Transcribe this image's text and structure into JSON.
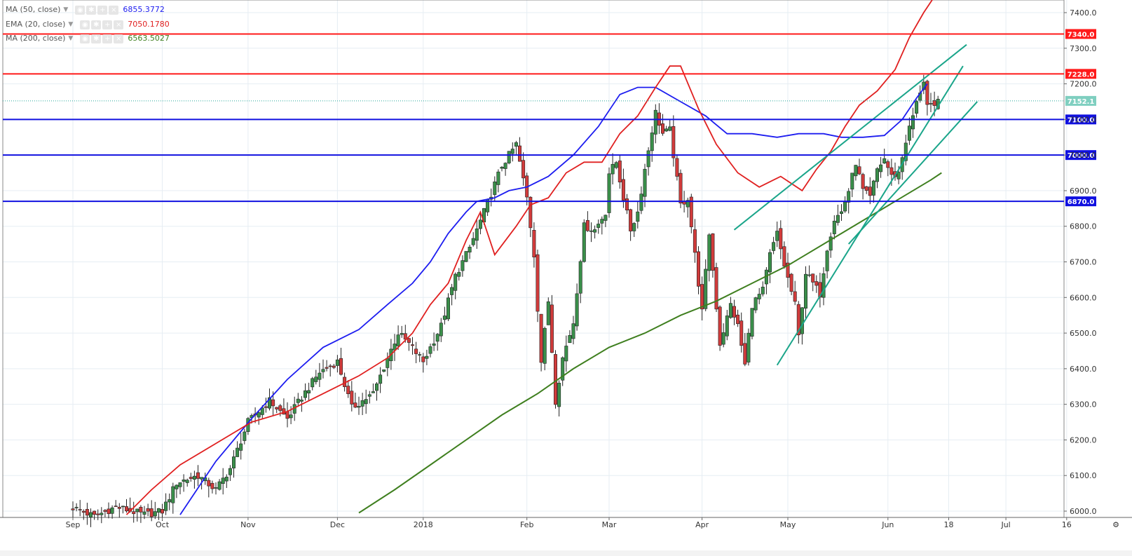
{
  "legend": [
    {
      "label": "MA (50, close)",
      "value": "6855.3772",
      "color": "#1d1df0"
    },
    {
      "label": "EMA (20, close)",
      "value": "7050.1780",
      "color": "#e02020"
    },
    {
      "label": "MA (200, close)",
      "value": "6563.5027",
      "color": "#3f7f1f"
    }
  ],
  "colors": {
    "up": "#26a69a",
    "down": "#e53935",
    "grid": "#e6edf3",
    "red_line": "#ff1a1a",
    "blue_line": "#1010e0",
    "trend": "#1aa58a"
  },
  "chart_data": {
    "type": "candlestick",
    "ylim": [
      5990,
      7420
    ],
    "y_ticks": [
      "7400.0",
      "7300.0",
      "7200.0",
      "7100.0",
      "7000.0",
      "6900.0",
      "6800.0",
      "6700.0",
      "6600.0",
      "6500.0",
      "6400.0",
      "6300.0",
      "6200.0",
      "6100.0",
      "6000.0"
    ],
    "x_labels": [
      {
        "label": "Sep",
        "i": 0
      },
      {
        "label": "Oct",
        "i": 25
      },
      {
        "label": "Nov",
        "i": 49
      },
      {
        "label": "Dec",
        "i": 74
      },
      {
        "label": "2018",
        "i": 98
      },
      {
        "label": "Feb",
        "i": 127
      },
      {
        "label": "Mar",
        "i": 150
      },
      {
        "label": "Apr",
        "i": 176
      },
      {
        "label": "May",
        "i": 200
      },
      {
        "label": "Jun",
        "i": 228
      },
      {
        "label": "18",
        "i": 245
      },
      {
        "label": "Jul",
        "i": 261
      },
      {
        "label": "16",
        "i": 278
      }
    ],
    "horizontal_levels": [
      {
        "value": 7340.0,
        "label": "7340.0",
        "kind": "red"
      },
      {
        "value": 7228.0,
        "label": "7228.0",
        "kind": "red"
      },
      {
        "value": 7100.0,
        "label": "7100.0",
        "kind": "blue"
      },
      {
        "value": 7000.0,
        "label": "7000.0",
        "kind": "blue"
      },
      {
        "value": 6870.0,
        "label": "6870.0",
        "kind": "blue"
      }
    ],
    "last_price": {
      "value": 7152.1,
      "label": "7152.1"
    },
    "anchors": [
      [
        0,
        6010
      ],
      [
        6,
        5985
      ],
      [
        12,
        6012
      ],
      [
        20,
        5990
      ],
      [
        25,
        6000
      ],
      [
        29,
        6080
      ],
      [
        35,
        6100
      ],
      [
        40,
        6060
      ],
      [
        44,
        6120
      ],
      [
        49,
        6250
      ],
      [
        55,
        6310
      ],
      [
        60,
        6260
      ],
      [
        64,
        6320
      ],
      [
        69,
        6390
      ],
      [
        74,
        6420
      ],
      [
        78,
        6290
      ],
      [
        84,
        6330
      ],
      [
        88,
        6430
      ],
      [
        91,
        6500
      ],
      [
        94,
        6470
      ],
      [
        98,
        6420
      ],
      [
        103,
        6520
      ],
      [
        107,
        6660
      ],
      [
        111,
        6740
      ],
      [
        115,
        6840
      ],
      [
        120,
        6970
      ],
      [
        124,
        7030
      ],
      [
        127,
        6880
      ],
      [
        129,
        6720
      ],
      [
        131,
        6420
      ],
      [
        133,
        6590
      ],
      [
        135,
        6310
      ],
      [
        137,
        6430
      ],
      [
        140,
        6530
      ],
      [
        143,
        6800
      ],
      [
        146,
        6790
      ],
      [
        149,
        6840
      ],
      [
        150,
        6950
      ],
      [
        152,
        6980
      ],
      [
        154,
        6880
      ],
      [
        156,
        6790
      ],
      [
        158,
        6840
      ],
      [
        160,
        6960
      ],
      [
        162,
        7070
      ],
      [
        163,
        7120
      ],
      [
        165,
        7060
      ],
      [
        167,
        7070
      ],
      [
        170,
        6860
      ],
      [
        172,
        6880
      ],
      [
        174,
        6720
      ],
      [
        176,
        6560
      ],
      [
        178,
        6780
      ],
      [
        181,
        6470
      ],
      [
        184,
        6580
      ],
      [
        186,
        6520
      ],
      [
        188,
        6410
      ],
      [
        190,
        6580
      ],
      [
        193,
        6620
      ],
      [
        195,
        6720
      ],
      [
        197,
        6780
      ],
      [
        199,
        6690
      ],
      [
        202,
        6580
      ],
      [
        203,
        6490
      ],
      [
        205,
        6670
      ],
      [
        207,
        6640
      ],
      [
        209,
        6610
      ],
      [
        211,
        6740
      ],
      [
        213,
        6820
      ],
      [
        215,
        6840
      ],
      [
        217,
        6900
      ],
      [
        219,
        6980
      ],
      [
        221,
        6900
      ],
      [
        223,
        6880
      ],
      [
        225,
        6960
      ],
      [
        227,
        6990
      ],
      [
        229,
        6940
      ],
      [
        231,
        6950
      ],
      [
        233,
        7040
      ],
      [
        235,
        7110
      ],
      [
        237,
        7180
      ],
      [
        238,
        7210
      ],
      [
        239,
        7140
      ],
      [
        241,
        7130
      ],
      [
        242,
        7152
      ]
    ],
    "overlays": {
      "ma50": [
        [
          30,
          5990
        ],
        [
          40,
          6140
        ],
        [
          50,
          6260
        ],
        [
          60,
          6370
        ],
        [
          70,
          6460
        ],
        [
          80,
          6510
        ],
        [
          88,
          6580
        ],
        [
          95,
          6640
        ],
        [
          100,
          6700
        ],
        [
          105,
          6780
        ],
        [
          110,
          6840
        ],
        [
          113,
          6870
        ],
        [
          118,
          6880
        ],
        [
          122,
          6900
        ],
        [
          127,
          6910
        ],
        [
          133,
          6940
        ],
        [
          140,
          7000
        ],
        [
          147,
          7080
        ],
        [
          153,
          7170
        ],
        [
          158,
          7190
        ],
        [
          163,
          7190
        ],
        [
          170,
          7150
        ],
        [
          177,
          7110
        ],
        [
          183,
          7060
        ],
        [
          190,
          7060
        ],
        [
          197,
          7050
        ],
        [
          203,
          7060
        ],
        [
          210,
          7060
        ],
        [
          215,
          7050
        ],
        [
          221,
          7050
        ],
        [
          227,
          7055
        ],
        [
          232,
          7100
        ],
        [
          236,
          7160
        ],
        [
          239,
          7200
        ]
      ],
      "ema20": [
        [
          15,
          5990
        ],
        [
          22,
          6060
        ],
        [
          30,
          6130
        ],
        [
          40,
          6190
        ],
        [
          50,
          6250
        ],
        [
          60,
          6280
        ],
        [
          70,
          6330
        ],
        [
          80,
          6380
        ],
        [
          88,
          6430
        ],
        [
          95,
          6500
        ],
        [
          100,
          6580
        ],
        [
          105,
          6640
        ],
        [
          110,
          6760
        ],
        [
          114,
          6840
        ],
        [
          118,
          6720
        ],
        [
          124,
          6800
        ],
        [
          128,
          6860
        ],
        [
          133,
          6880
        ],
        [
          138,
          6950
        ],
        [
          143,
          6980
        ],
        [
          148,
          6980
        ],
        [
          153,
          7060
        ],
        [
          158,
          7110
        ],
        [
          163,
          7190
        ],
        [
          167,
          7250
        ],
        [
          170,
          7250
        ],
        [
          175,
          7130
        ],
        [
          180,
          7030
        ],
        [
          186,
          6950
        ],
        [
          192,
          6910
        ],
        [
          198,
          6940
        ],
        [
          204,
          6900
        ],
        [
          208,
          6960
        ],
        [
          212,
          7010
        ],
        [
          216,
          7080
        ],
        [
          220,
          7140
        ],
        [
          225,
          7180
        ],
        [
          230,
          7240
        ],
        [
          234,
          7330
        ],
        [
          238,
          7400
        ],
        [
          242,
          7460
        ]
      ],
      "ma200": [
        [
          80,
          5995
        ],
        [
          90,
          6060
        ],
        [
          100,
          6130
        ],
        [
          110,
          6200
        ],
        [
          120,
          6270
        ],
        [
          130,
          6330
        ],
        [
          140,
          6400
        ],
        [
          150,
          6460
        ],
        [
          160,
          6500
        ],
        [
          170,
          6550
        ],
        [
          180,
          6590
        ],
        [
          190,
          6640
        ],
        [
          200,
          6690
        ],
        [
          210,
          6750
        ],
        [
          220,
          6810
        ],
        [
          230,
          6870
        ],
        [
          240,
          6930
        ],
        [
          243,
          6950
        ]
      ]
    },
    "trendlines": [
      [
        [
          185,
          6790
        ],
        [
          250,
          7310
        ]
      ],
      [
        [
          197,
          6410
        ],
        [
          249,
          7250
        ]
      ],
      [
        [
          217,
          6750
        ],
        [
          253,
          7150
        ]
      ]
    ]
  }
}
